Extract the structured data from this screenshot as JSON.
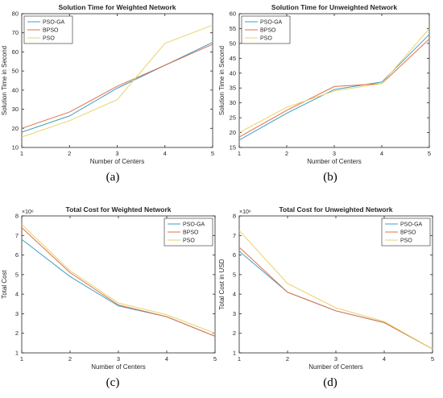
{
  "colors": {
    "PSO-GA": "#3f9fc4",
    "BPSO": "#e0704a",
    "PSO": "#e8d36a"
  },
  "captions": {
    "a": "(a)",
    "b": "(b)",
    "c": "(c)",
    "d": "(d)"
  },
  "chart_data": [
    {
      "type": "line",
      "title": "Solution Time for Weighted Network",
      "xlabel": "Number of Centers",
      "ylabel": "Solution Time in Second",
      "x": [
        1,
        2,
        3,
        4,
        5
      ],
      "xlim": [
        1,
        5
      ],
      "ylim": [
        10,
        80
      ],
      "yticks": [
        10,
        20,
        30,
        40,
        50,
        60,
        70,
        80
      ],
      "exponent": "",
      "legend_position": "top-left",
      "series": [
        {
          "name": "PSO-GA",
          "values": [
            18,
            26.5,
            41,
            53,
            65
          ]
        },
        {
          "name": "BPSO",
          "values": [
            20,
            28.5,
            42,
            53,
            64
          ]
        },
        {
          "name": "PSO",
          "values": [
            15.5,
            24,
            35,
            64.5,
            74
          ]
        }
      ]
    },
    {
      "type": "line",
      "title": "Solution Time for Unweighted Network",
      "xlabel": "Number of Centers",
      "ylabel": "Solution Time in Second",
      "x": [
        1,
        2,
        3,
        4,
        5
      ],
      "xlim": [
        1,
        5
      ],
      "ylim": [
        15,
        60
      ],
      "yticks": [
        15,
        20,
        25,
        30,
        35,
        40,
        45,
        50,
        55,
        60
      ],
      "exponent": "",
      "legend_position": "top-left",
      "series": [
        {
          "name": "PSO-GA",
          "values": [
            17.5,
            26.5,
            34.5,
            37,
            53
          ]
        },
        {
          "name": "BPSO",
          "values": [
            18.5,
            27.5,
            35.5,
            36.5,
            51.5
          ]
        },
        {
          "name": "PSO",
          "values": [
            20,
            28.5,
            34,
            36.5,
            55
          ]
        }
      ]
    },
    {
      "type": "line",
      "title": "Total Cost for Weighted Network",
      "xlabel": "Number of Centers",
      "ylabel": "Total Cost",
      "x": [
        1,
        2,
        3,
        4,
        5
      ],
      "xlim": [
        1,
        5
      ],
      "ylim": [
        1,
        8
      ],
      "yticks": [
        1,
        2,
        3,
        4,
        5,
        6,
        7,
        8
      ],
      "exponent": "×10⁶",
      "legend_position": "top-right",
      "series": [
        {
          "name": "PSO-GA",
          "values": [
            6.8,
            4.9,
            3.4,
            2.85,
            1.85
          ]
        },
        {
          "name": "BPSO",
          "values": [
            7.4,
            5.1,
            3.45,
            2.85,
            1.85
          ]
        },
        {
          "name": "PSO",
          "values": [
            7.55,
            5.2,
            3.55,
            2.95,
            2.0
          ]
        }
      ]
    },
    {
      "type": "line",
      "title": "Total Cost for Unweighted Network",
      "xlabel": "Number of Centers",
      "ylabel": "Total Cost in USD",
      "x": [
        1,
        2,
        3,
        4,
        5
      ],
      "xlim": [
        1,
        5
      ],
      "ylim": [
        1,
        8
      ],
      "yticks": [
        1,
        2,
        3,
        4,
        5,
        6,
        7,
        8
      ],
      "exponent": "×10⁶",
      "legend_position": "top-right",
      "series": [
        {
          "name": "PSO-GA",
          "values": [
            6.2,
            4.1,
            3.15,
            2.55,
            1.2
          ]
        },
        {
          "name": "BPSO",
          "values": [
            6.4,
            4.1,
            3.15,
            2.55,
            1.2
          ]
        },
        {
          "name": "PSO",
          "values": [
            7.25,
            4.55,
            3.3,
            2.6,
            1.2
          ]
        }
      ]
    }
  ]
}
